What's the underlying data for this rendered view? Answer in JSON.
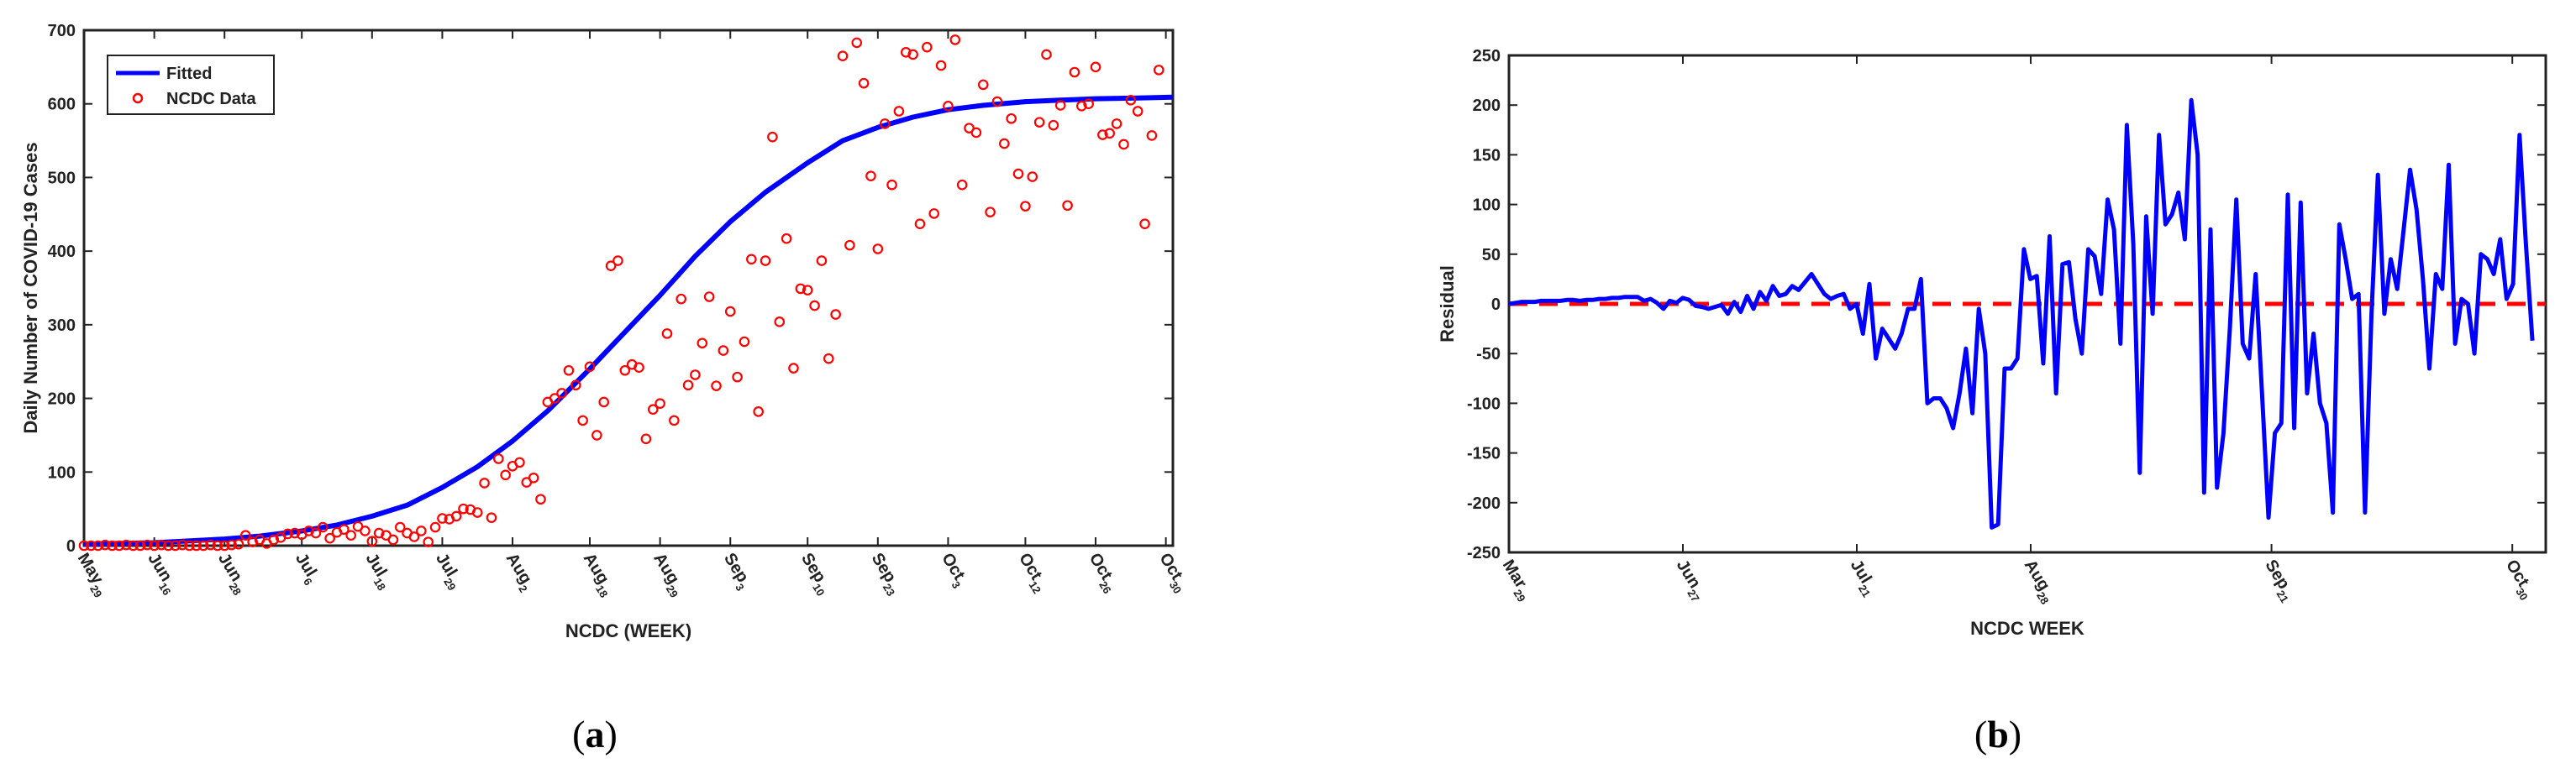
{
  "captions": {
    "a": "a",
    "b": "b"
  },
  "chart_data": [
    {
      "type": "scatter",
      "xlabel": "NCDC (WEEK)",
      "ylabel": "Daily Number of COVID-19 Cases",
      "ylim": [
        0,
        700
      ],
      "xlim": [
        0,
        155
      ],
      "yticks": [
        0,
        100,
        200,
        300,
        400,
        500,
        600,
        700
      ],
      "xticks": [
        {
          "pos": 0,
          "month": "May",
          "day": "29"
        },
        {
          "pos": 10,
          "month": "Jun",
          "day": "16"
        },
        {
          "pos": 20,
          "month": "Jun",
          "day": "28"
        },
        {
          "pos": 31,
          "month": "Jul",
          "day": "6"
        },
        {
          "pos": 41,
          "month": "Jul",
          "day": "18"
        },
        {
          "pos": 51,
          "month": "Jul",
          "day": "29"
        },
        {
          "pos": 61,
          "month": "Aug",
          "day": "2"
        },
        {
          "pos": 72,
          "month": "Aug",
          "day": "18"
        },
        {
          "pos": 82,
          "month": "Aug",
          "day": "29"
        },
        {
          "pos": 92,
          "month": "Sep",
          "day": "3"
        },
        {
          "pos": 103,
          "month": "Sep",
          "day": "10"
        },
        {
          "pos": 113,
          "month": "Sep",
          "day": "23"
        },
        {
          "pos": 123,
          "month": "Oct",
          "day": "3"
        },
        {
          "pos": 134,
          "month": "Oct",
          "day": "12"
        },
        {
          "pos": 144,
          "month": "Oct",
          "day": "26"
        },
        {
          "pos": 154,
          "month": "Oct",
          "day": "30"
        }
      ],
      "legend": {
        "placement": "top-left",
        "entries": [
          "Fitted",
          "NCDC Data"
        ]
      },
      "colors": {
        "fitted": "#0000ff",
        "data": "#ff0000"
      },
      "fitted": {
        "name": "Fitted",
        "x": [
          0,
          10,
          20,
          25,
          31,
          36,
          41,
          46,
          51,
          56,
          61,
          66,
          72,
          77,
          82,
          87,
          92,
          97,
          103,
          108,
          113,
          118,
          123,
          128,
          134,
          139,
          144,
          150,
          155
        ],
        "y": [
          2,
          4,
          9,
          13,
          20,
          28,
          40,
          55,
          79,
          107,
          142,
          183,
          240,
          290,
          340,
          393,
          440,
          480,
          520,
          550,
          568,
          582,
          592,
          598,
          603,
          605,
          607,
          608,
          609
        ]
      },
      "points": [
        [
          0,
          0
        ],
        [
          1,
          0
        ],
        [
          2,
          0
        ],
        [
          3,
          1
        ],
        [
          4,
          0
        ],
        [
          5,
          0
        ],
        [
          6,
          1
        ],
        [
          7,
          0
        ],
        [
          8,
          0
        ],
        [
          9,
          1
        ],
        [
          10,
          0
        ],
        [
          11,
          1
        ],
        [
          12,
          0
        ],
        [
          13,
          0
        ],
        [
          14,
          1
        ],
        [
          15,
          0
        ],
        [
          16,
          0
        ],
        [
          17,
          0
        ],
        [
          18,
          1
        ],
        [
          19,
          0
        ],
        [
          20,
          0
        ],
        [
          21,
          1
        ],
        [
          22,
          2
        ],
        [
          23,
          14
        ],
        [
          24,
          5
        ],
        [
          25,
          8
        ],
        [
          26,
          3
        ],
        [
          27,
          8
        ],
        [
          28,
          11
        ],
        [
          29,
          16
        ],
        [
          30,
          17
        ],
        [
          31,
          15
        ],
        [
          32,
          20
        ],
        [
          33,
          17
        ],
        [
          34,
          25
        ],
        [
          35,
          10
        ],
        [
          36,
          18
        ],
        [
          37,
          22
        ],
        [
          38,
          14
        ],
        [
          39,
          26
        ],
        [
          40,
          20
        ],
        [
          41,
          6
        ],
        [
          42,
          17
        ],
        [
          43,
          14
        ],
        [
          44,
          8
        ],
        [
          45,
          25
        ],
        [
          46,
          17
        ],
        [
          47,
          12
        ],
        [
          48,
          20
        ],
        [
          49,
          5
        ],
        [
          50,
          25
        ],
        [
          51,
          37
        ],
        [
          52,
          36
        ],
        [
          53,
          40
        ],
        [
          54,
          50
        ],
        [
          55,
          49
        ],
        [
          56,
          45
        ],
        [
          57,
          85
        ],
        [
          58,
          38
        ],
        [
          59,
          118
        ],
        [
          60,
          96
        ],
        [
          61,
          108
        ],
        [
          62,
          113
        ],
        [
          63,
          86
        ],
        [
          64,
          92
        ],
        [
          65,
          63
        ],
        [
          66,
          195
        ],
        [
          67,
          200
        ],
        [
          68,
          207
        ],
        [
          69,
          238
        ],
        [
          70,
          218
        ],
        [
          71,
          170
        ],
        [
          72,
          243
        ],
        [
          73,
          150
        ],
        [
          74,
          195
        ],
        [
          75,
          380
        ],
        [
          76,
          387
        ],
        [
          77,
          238
        ],
        [
          78,
          246
        ],
        [
          79,
          242
        ],
        [
          80,
          145
        ],
        [
          81,
          185
        ],
        [
          82,
          193
        ],
        [
          83,
          288
        ],
        [
          84,
          170
        ],
        [
          85,
          335
        ],
        [
          86,
          218
        ],
        [
          87,
          232
        ],
        [
          88,
          275
        ],
        [
          89,
          338
        ],
        [
          90,
          217
        ],
        [
          91,
          265
        ],
        [
          92,
          318
        ],
        [
          93,
          229
        ],
        [
          94,
          277
        ],
        [
          95,
          389
        ],
        [
          96,
          182
        ],
        [
          97,
          387
        ],
        [
          98,
          555
        ],
        [
          99,
          304
        ],
        [
          100,
          417
        ],
        [
          101,
          241
        ],
        [
          102,
          349
        ],
        [
          103,
          347
        ],
        [
          104,
          326
        ],
        [
          105,
          387
        ],
        [
          106,
          254
        ],
        [
          107,
          314
        ],
        [
          108,
          665
        ],
        [
          109,
          408
        ],
        [
          110,
          683
        ],
        [
          111,
          628
        ],
        [
          112,
          502
        ],
        [
          113,
          403
        ],
        [
          114,
          573
        ],
        [
          115,
          490
        ],
        [
          116,
          590
        ],
        [
          117,
          670
        ],
        [
          118,
          667
        ],
        [
          119,
          437
        ],
        [
          120,
          677
        ],
        [
          121,
          451
        ],
        [
          122,
          652
        ],
        [
          123,
          597
        ],
        [
          124,
          687
        ],
        [
          125,
          490
        ],
        [
          126,
          567
        ],
        [
          127,
          561
        ],
        [
          128,
          626
        ],
        [
          129,
          453
        ],
        [
          130,
          603
        ],
        [
          131,
          546
        ],
        [
          132,
          580
        ],
        [
          133,
          505
        ],
        [
          134,
          461
        ],
        [
          135,
          501
        ],
        [
          136,
          575
        ],
        [
          137,
          667
        ],
        [
          138,
          571
        ],
        [
          139,
          598
        ],
        [
          140,
          462
        ],
        [
          141,
          643
        ],
        [
          142,
          597
        ],
        [
          143,
          600
        ],
        [
          144,
          650
        ],
        [
          145,
          558
        ],
        [
          146,
          560
        ],
        [
          147,
          573
        ],
        [
          148,
          545
        ],
        [
          149,
          605
        ],
        [
          150,
          590
        ],
        [
          151,
          437
        ],
        [
          152,
          557
        ],
        [
          153,
          646
        ]
      ]
    },
    {
      "type": "line",
      "xlabel": "NCDC WEEK",
      "ylabel": "Residual",
      "ylim": [
        -250,
        250
      ],
      "xlim": [
        0,
        155
      ],
      "yticks": [
        -250,
        -200,
        -150,
        -100,
        -50,
        0,
        50,
        100,
        150,
        200,
        250
      ],
      "xticks": [
        {
          "pos": 0,
          "month": "Mar",
          "day": "29"
        },
        {
          "pos": 26,
          "month": "Jun",
          "day": "27"
        },
        {
          "pos": 52,
          "month": "Jul",
          "day": "21"
        },
        {
          "pos": 78,
          "month": "Aug",
          "day": "28"
        },
        {
          "pos": 114,
          "month": "Sep",
          "day": "21"
        },
        {
          "pos": 150,
          "month": "Oct",
          "day": "30"
        }
      ],
      "colors": {
        "residual": "#0000ff",
        "zero": "#ff0000"
      },
      "residual": {
        "name": "Residual",
        "y": [
          0,
          1,
          2,
          2,
          2,
          3,
          3,
          3,
          3,
          4,
          4,
          3,
          4,
          4,
          5,
          5,
          6,
          6,
          7,
          7,
          7,
          3,
          5,
          1,
          -5,
          3,
          1,
          6,
          4,
          -2,
          -3,
          -5,
          -3,
          -1,
          -10,
          2,
          -8,
          8,
          -5,
          12,
          3,
          18,
          8,
          10,
          18,
          14,
          22,
          30,
          20,
          10,
          5,
          8,
          10,
          -5,
          0,
          -30,
          20,
          -55,
          -25,
          -35,
          -45,
          -30,
          -5,
          -5,
          25,
          -100,
          -95,
          -95,
          -105,
          -125,
          -90,
          -45,
          -110,
          -5,
          -50,
          -225,
          -222,
          -65,
          -65,
          -55,
          55,
          25,
          28,
          -60,
          68,
          -90,
          40,
          42,
          -15,
          -50,
          55,
          48,
          10,
          105,
          75,
          -40,
          180,
          60,
          -170,
          88,
          -10,
          170,
          80,
          90,
          112,
          65,
          205,
          150,
          -190,
          75,
          -185,
          -130,
          -25,
          105,
          -40,
          -55,
          30,
          -90,
          -215,
          -130,
          -120,
          110,
          -125,
          102,
          -90,
          -30,
          -100,
          -120,
          -210,
          80,
          45,
          5,
          10,
          -210,
          -10,
          130,
          -10,
          45,
          15,
          75,
          135,
          95,
          25,
          -65,
          30,
          15,
          140,
          -40,
          5,
          0,
          -50,
          50,
          45,
          30,
          65,
          5,
          20,
          170,
          60,
          -37
        ]
      }
    }
  ]
}
